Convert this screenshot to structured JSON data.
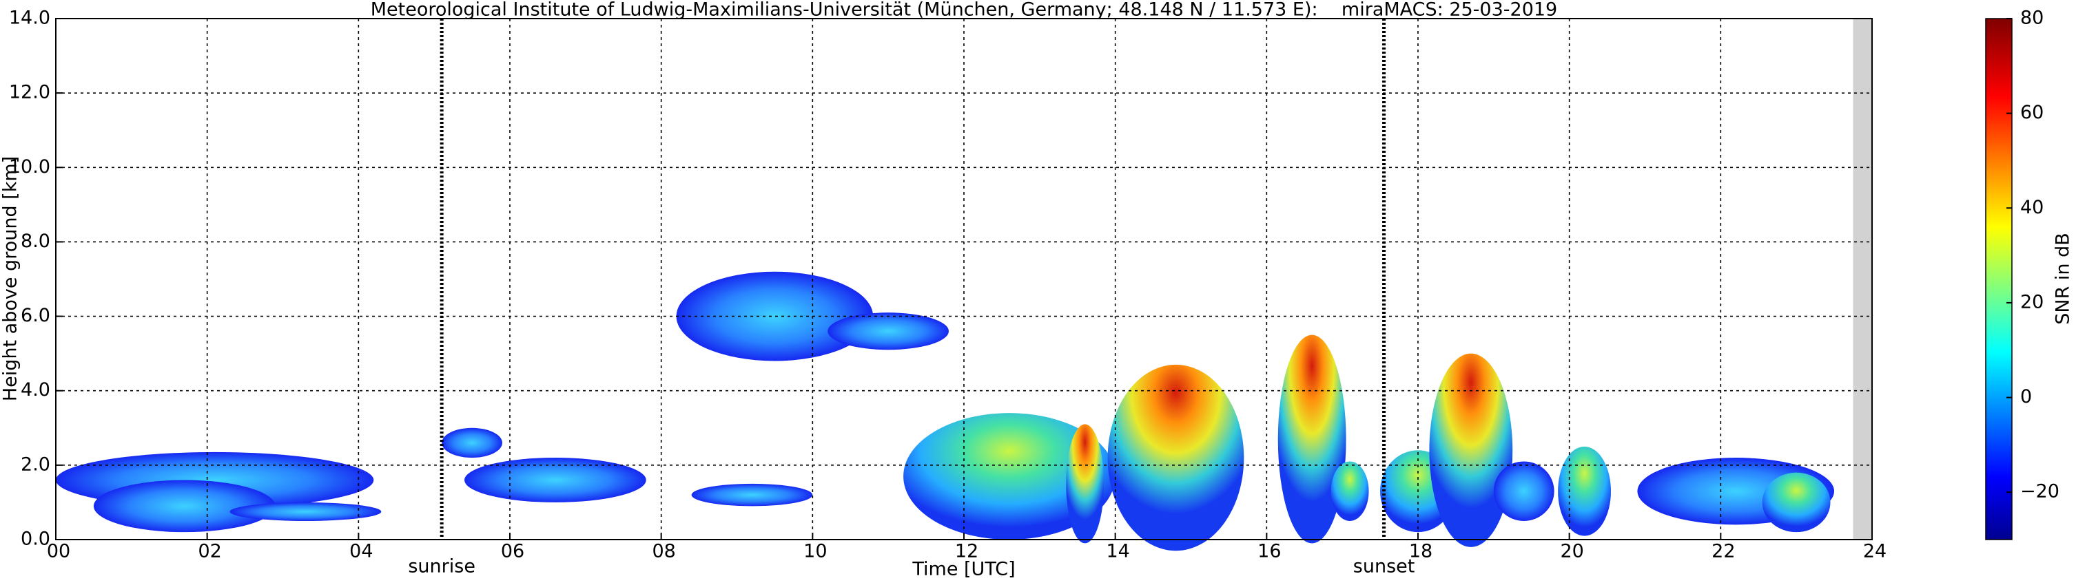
{
  "chart_data": {
    "type": "time-height",
    "title": "Meteorological Institute of Ludwig-Maximilians-Universität (München, Germany; 48.148 N / 11.573 E):    miraMACS: 25-03-2019",
    "x_label": "Time [UTC]",
    "y_label": "Height above ground [km]",
    "xlim": [
      0,
      24
    ],
    "xticks": [
      {
        "value": 0,
        "label": "00"
      },
      {
        "value": 2,
        "label": "02"
      },
      {
        "value": 4,
        "label": "04"
      },
      {
        "value": 6,
        "label": "06"
      },
      {
        "value": 8,
        "label": "08"
      },
      {
        "value": 10,
        "label": "10"
      },
      {
        "value": 12,
        "label": "12"
      },
      {
        "value": 14,
        "label": "14"
      },
      {
        "value": 16,
        "label": "16"
      },
      {
        "value": 18,
        "label": "18"
      },
      {
        "value": 20,
        "label": "20"
      },
      {
        "value": 22,
        "label": "22"
      },
      {
        "value": 24,
        "label": "24"
      }
    ],
    "ylim": [
      0,
      14
    ],
    "yticks": [
      {
        "value": 0,
        "label": "0.0"
      },
      {
        "value": 2,
        "label": "2.0"
      },
      {
        "value": 4,
        "label": "4.0"
      },
      {
        "value": 6,
        "label": "6.0"
      },
      {
        "value": 8,
        "label": "8.0"
      },
      {
        "value": 10,
        "label": "10.0"
      },
      {
        "value": 12,
        "label": "12.0"
      },
      {
        "value": 14,
        "label": "14.0"
      }
    ],
    "grid": true,
    "annotations": [
      {
        "text": "sunrise",
        "x": 5.1
      },
      {
        "text": "sunset",
        "x": 17.55
      }
    ],
    "colorbar": {
      "label": "SNR in dB",
      "ylim": [
        -30,
        80
      ],
      "yticks": [
        {
          "value": -20,
          "label": "−20"
        },
        0,
        20,
        40,
        60,
        80
      ]
    }
  }
}
